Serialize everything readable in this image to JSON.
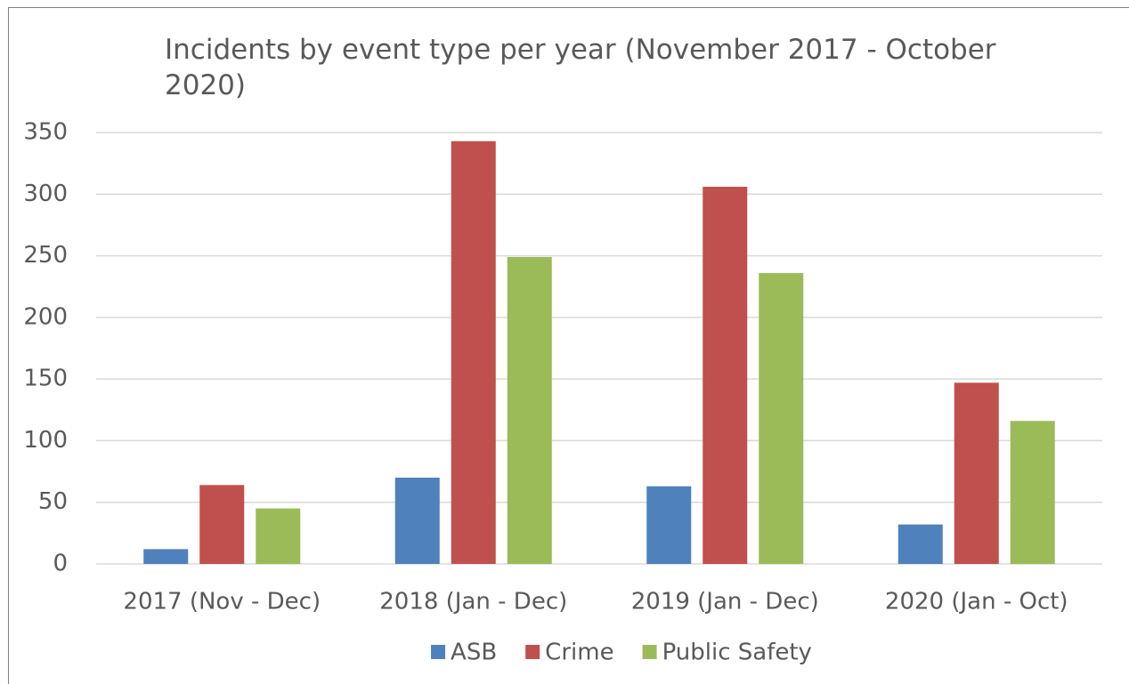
{
  "chart_data": {
    "type": "bar",
    "title": "Incidents by event type per year (November 2017 - October 2020)",
    "categories": [
      "2017 (Nov - Dec)",
      "2018 (Jan - Dec)",
      "2019 (Jan - Dec)",
      "2020 (Jan - Oct)"
    ],
    "series": [
      {
        "name": "ASB",
        "color": "#4f81bd",
        "values": [
          12,
          70,
          63,
          32
        ]
      },
      {
        "name": "Crime",
        "color": "#c0504d",
        "values": [
          64,
          343,
          306,
          147
        ]
      },
      {
        "name": "Public Safety",
        "color": "#9bbb59",
        "values": [
          45,
          249,
          236,
          116
        ]
      }
    ],
    "ylim": [
      0,
      350
    ],
    "yticks": [
      0,
      50,
      100,
      150,
      200,
      250,
      300,
      350
    ],
    "grid": true,
    "legend": "bottom"
  }
}
